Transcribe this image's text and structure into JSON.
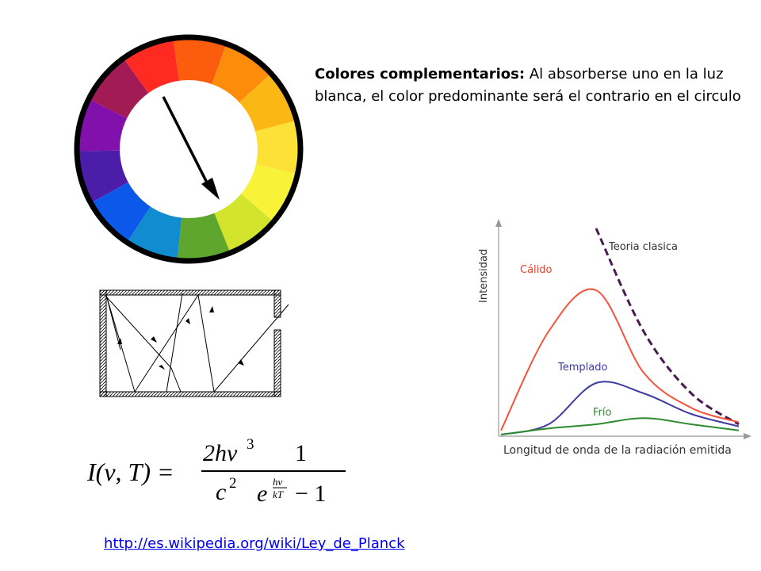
{
  "caption": {
    "bold": "Colores complementarios:",
    "text": " Al absorberse uno en la luz blanca, el color predominante será el contrario en el circulo"
  },
  "color_wheel": {
    "segments": [
      "#fc5c0d",
      "#fc8c0a",
      "#fbb714",
      "#fde136",
      "#f8f338",
      "#d3e42d",
      "#5ea62e",
      "#118cd0",
      "#0b58ea",
      "#4b1da9",
      "#8210ab",
      "#a21b55",
      "#ff2b23"
    ],
    "outline_color": "#000000"
  },
  "formula": {
    "lhs": "I(ν, T) =",
    "num1": "2hν",
    "num1_exp": "3",
    "den1": "c",
    "den1_exp": "2",
    "num2": "1",
    "exp_base": "e",
    "exp_num": "hν",
    "exp_den": "kT",
    "minus_one": "− 1"
  },
  "chart_data": {
    "type": "line",
    "title": "",
    "xlabel": "Longitud de onda de la radiación emitida",
    "ylabel": "Intensidad",
    "x": [
      0.0,
      0.2,
      0.4,
      0.6,
      0.8,
      1.0
    ],
    "series": [
      {
        "name": "Teoria clasica",
        "color": "#4a1a52",
        "style": "dashed",
        "values": [
          null,
          null,
          1.0,
          0.5,
          0.2,
          0.05
        ]
      },
      {
        "name": "Cálido",
        "color": "#f5533a",
        "values": [
          0.02,
          0.5,
          0.7,
          0.3,
          0.13,
          0.06
        ]
      },
      {
        "name": "Templado",
        "color": "#3d3aa0",
        "values": [
          0.0,
          0.05,
          0.25,
          0.2,
          0.1,
          0.04
        ]
      },
      {
        "name": "Frío",
        "color": "#2e8a2e",
        "values": [
          0.0,
          0.03,
          0.05,
          0.08,
          0.05,
          0.02
        ]
      }
    ]
  },
  "link": {
    "text": "http://es.wikipedia.org/wiki/Ley_de_Planck"
  }
}
